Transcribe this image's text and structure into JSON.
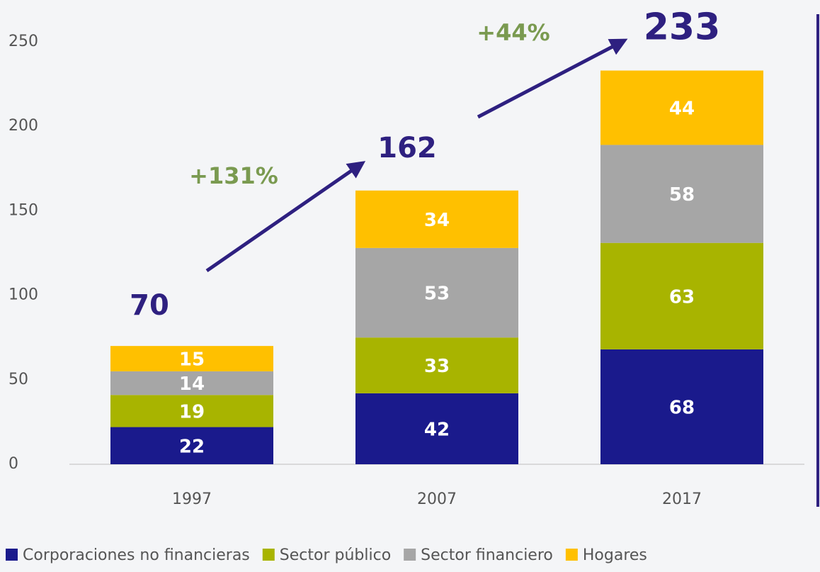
{
  "chart_data": {
    "type": "stacked_bar",
    "categories": [
      "1997",
      "2007",
      "2017"
    ],
    "series": [
      {
        "name": "Corporaciones no financieras",
        "color": "#1a1a8c",
        "values": [
          22,
          42,
          68
        ]
      },
      {
        "name": "Sector público",
        "color": "#a8b400",
        "values": [
          19,
          33,
          63
        ]
      },
      {
        "name": "Sector financiero",
        "color": "#a6a6a6",
        "values": [
          14,
          53,
          58
        ]
      },
      {
        "name": "Hogares",
        "color": "#ffc000",
        "values": [
          15,
          34,
          44
        ]
      }
    ],
    "totals": [
      70,
      162,
      233
    ],
    "annotations": [
      "+131%",
      "+44%"
    ],
    "ylim": [
      0,
      250
    ],
    "yticks": [
      0,
      50,
      100,
      150,
      200,
      250
    ],
    "grid": false,
    "legend": "bottom"
  }
}
